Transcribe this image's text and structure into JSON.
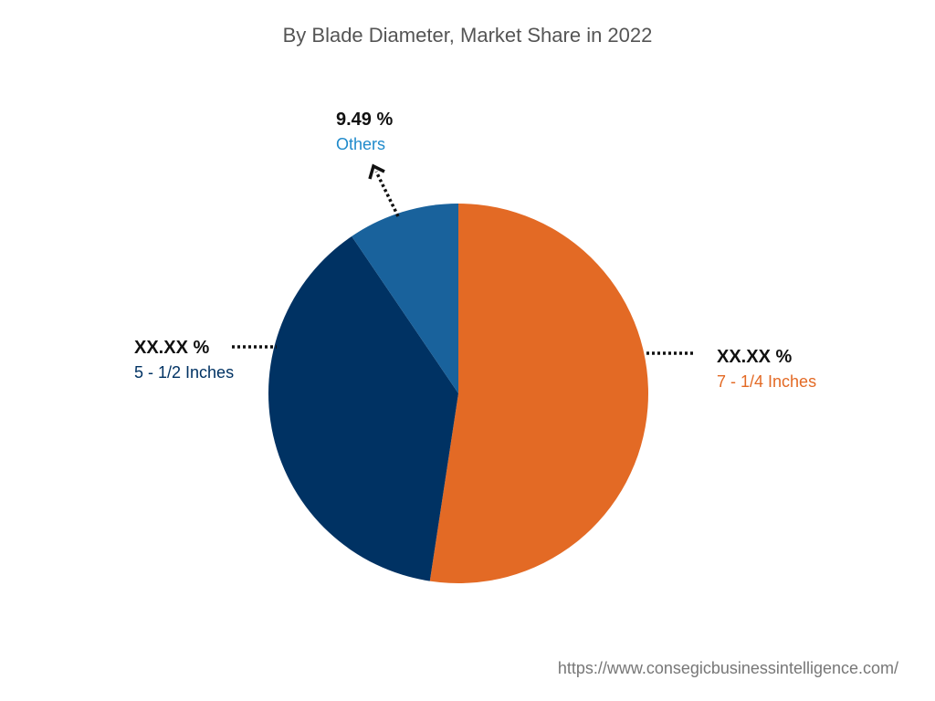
{
  "chart_data": {
    "type": "pie",
    "title": "By Blade Diameter, Market Share in 2022",
    "slices": [
      {
        "name": "7 - 1/4 Inches",
        "value_label": "XX.XX %",
        "value": 52.4,
        "color": "#E36A25"
      },
      {
        "name": "5 - 1/2 Inches",
        "value_label": "XX.XX %",
        "value": 38.11,
        "color": "#003263"
      },
      {
        "name": "Others",
        "value_label": "9.49 %",
        "value": 9.49,
        "color": "#19629C"
      }
    ]
  },
  "footer": {
    "url": "https://www.consegicbusinessintelligence.com/"
  }
}
